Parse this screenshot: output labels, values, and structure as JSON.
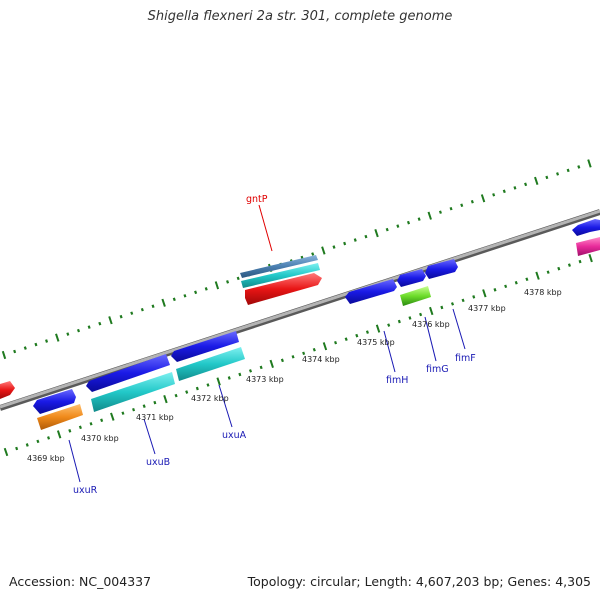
{
  "title": "Shigella flexneri 2a str. 301, complete genome",
  "footer": {
    "accession": "Accession: NC_004337",
    "summary": "Topology: circular; Length: 4,607,203 bp; Genes: 4,305"
  },
  "colors": {
    "backbone": "#8c8c8c",
    "ticks": "#1f7a1f",
    "forward": "#1a1ae6",
    "cds_cyan": "#22c8c8",
    "steelblue": "#4a7fb0",
    "red": "#e81515",
    "orange": "#f08a1a",
    "green": "#6ddc2a",
    "magenta": "#e82a9a",
    "label_red": "#e00000",
    "label_blue": "#1a1ab4"
  },
  "scale": {
    "unit": "kbp",
    "labels": [
      "4369 kbp",
      "4370 kbp",
      "4371 kbp",
      "4372 kbp",
      "4373 kbp",
      "4374 kbp",
      "4375 kbp",
      "4376 kbp",
      "4377 kbp",
      "4378 kbp"
    ]
  },
  "genes": [
    {
      "name": "gntP",
      "label_color": "red"
    },
    {
      "name": "uxuR",
      "label_color": "blue"
    },
    {
      "name": "uxuB",
      "label_color": "blue"
    },
    {
      "name": "uxuA",
      "label_color": "blue"
    },
    {
      "name": "fimH",
      "label_color": "blue"
    },
    {
      "name": "fimG",
      "label_color": "blue"
    },
    {
      "name": "fimF",
      "label_color": "blue"
    }
  ]
}
